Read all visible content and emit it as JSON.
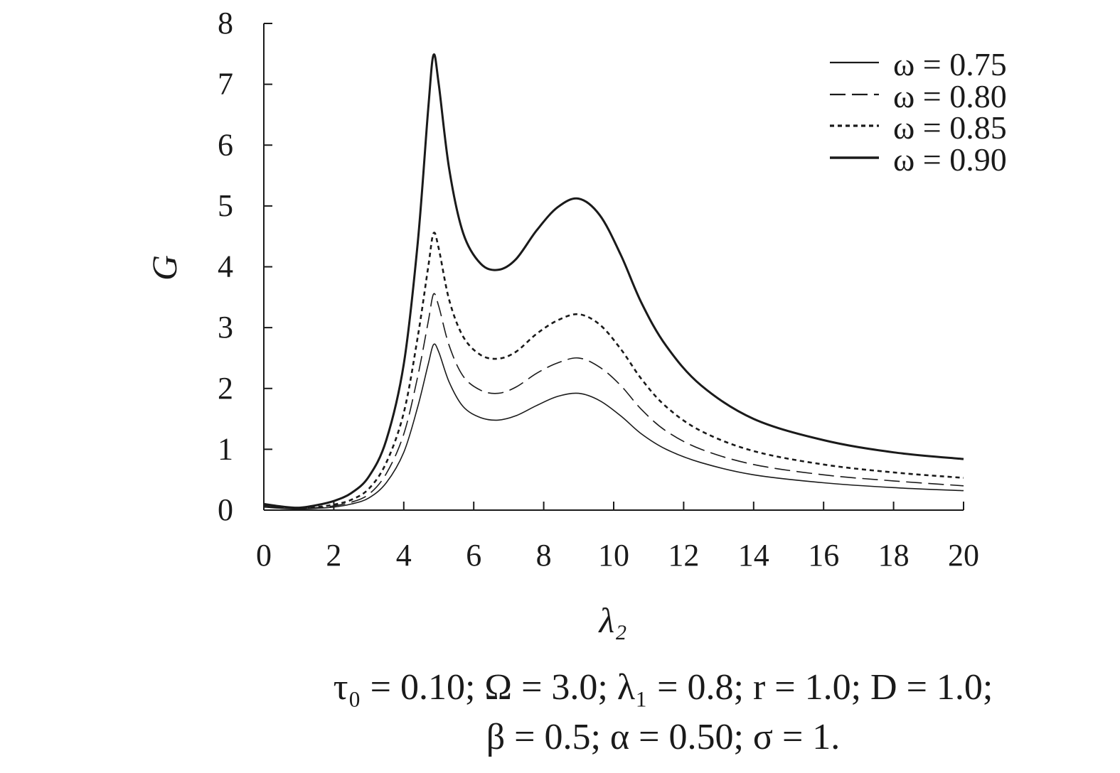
{
  "chart_data": {
    "type": "line",
    "xlabel": "λ₂",
    "ylabel": "G",
    "xlim": [
      0,
      20
    ],
    "ylim": [
      0,
      8
    ],
    "xticks": [
      0,
      2,
      4,
      6,
      8,
      10,
      12,
      14,
      16,
      18,
      20
    ],
    "yticks": [
      0,
      1,
      2,
      3,
      4,
      5,
      6,
      7,
      8
    ],
    "grid": false,
    "legend_position": "top-right",
    "x": [
      0,
      0.5,
      1,
      1.5,
      2,
      2.5,
      3,
      3.5,
      4,
      4.4,
      4.7,
      4.85,
      5,
      5.3,
      5.7,
      6.2,
      6.7,
      7.2,
      7.8,
      8.4,
      9,
      9.6,
      10.2,
      10.8,
      11.5,
      12.5,
      14,
      16,
      18,
      20
    ],
    "series": [
      {
        "name": "ω = 0.75",
        "style": "thin-solid",
        "values": [
          0.05,
          0.03,
          0.02,
          0.03,
          0.05,
          0.1,
          0.2,
          0.45,
          0.95,
          1.7,
          2.4,
          2.72,
          2.6,
          2.1,
          1.7,
          1.52,
          1.48,
          1.55,
          1.72,
          1.87,
          1.92,
          1.8,
          1.55,
          1.25,
          1.0,
          0.78,
          0.58,
          0.45,
          0.37,
          0.32
        ]
      },
      {
        "name": "ω = 0.80",
        "style": "dashed",
        "values": [
          0.07,
          0.04,
          0.03,
          0.04,
          0.07,
          0.13,
          0.26,
          0.6,
          1.25,
          2.2,
          3.1,
          3.55,
          3.35,
          2.7,
          2.2,
          1.97,
          1.92,
          2.02,
          2.25,
          2.42,
          2.5,
          2.35,
          2.05,
          1.65,
          1.3,
          1.0,
          0.75,
          0.58,
          0.48,
          0.4
        ]
      },
      {
        "name": "ω = 0.85",
        "style": "dotted",
        "values": [
          0.08,
          0.05,
          0.03,
          0.05,
          0.09,
          0.17,
          0.35,
          0.78,
          1.6,
          2.85,
          4.0,
          4.55,
          4.3,
          3.45,
          2.85,
          2.55,
          2.49,
          2.6,
          2.9,
          3.12,
          3.22,
          3.05,
          2.65,
          2.15,
          1.7,
          1.3,
          0.97,
          0.75,
          0.62,
          0.53
        ]
      },
      {
        "name": "ω = 0.90",
        "style": "thick-solid",
        "values": [
          0.1,
          0.06,
          0.04,
          0.08,
          0.15,
          0.28,
          0.55,
          1.15,
          2.4,
          4.4,
          6.6,
          7.48,
          7.0,
          5.6,
          4.55,
          4.05,
          3.95,
          4.12,
          4.6,
          4.98,
          5.12,
          4.85,
          4.2,
          3.4,
          2.7,
          2.05,
          1.5,
          1.15,
          0.95,
          0.84
        ]
      }
    ]
  },
  "caption": {
    "line1": "τ₀ = 0.10; Ω = 3.0; λ₁ = 0.8; r = 1.0; D = 1.0;",
    "line2": "β = 0.5; α = 0.50; σ = 1."
  }
}
